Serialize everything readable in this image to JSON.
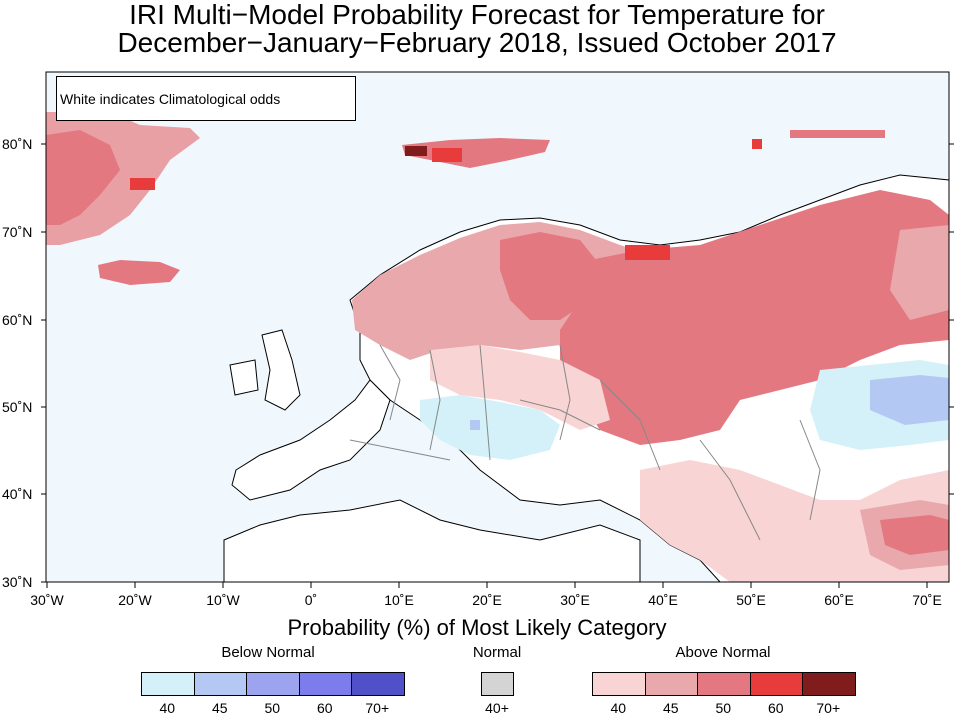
{
  "title_line1": "IRI Multi−Model Probability Forecast for Temperature for",
  "title_line2": "December−January−February 2018, Issued October 2017",
  "note": "White indicates Climatological odds",
  "lat_labels": [
    "80˚N",
    "70˚N",
    "60˚N",
    "50˚N",
    "40˚N",
    "30˚N"
  ],
  "lon_labels": [
    "30˚W",
    "20˚W",
    "10˚W",
    "0˚",
    "10˚E",
    "20˚E",
    "30˚E",
    "40˚E",
    "50˚E",
    "60˚E",
    "70˚E"
  ],
  "legend": {
    "title": "Probability (%) of Most Likely Category",
    "below": {
      "label": "Below Normal",
      "colors": [
        "#d4f0f8",
        "#b4c8f4",
        "#9ca4f0",
        "#7c7cec",
        "#5050c8"
      ],
      "ticks": [
        "40",
        "45",
        "50",
        "60",
        "70+"
      ]
    },
    "normal": {
      "label": "Normal",
      "colors": [
        "#d4d4d4"
      ],
      "ticks": [
        "40+"
      ]
    },
    "above": {
      "label": "Above Normal",
      "colors": [
        "#f8d4d4",
        "#e8a8ac",
        "#e47880",
        "#e83c3c",
        "#801c1c"
      ],
      "ticks": [
        "40",
        "45",
        "50",
        "60",
        "70+"
      ]
    }
  },
  "map_regions": [
    {
      "name": "greenland",
      "category": "above",
      "level": "45-60"
    },
    {
      "name": "iceland",
      "category": "above",
      "level": "50"
    },
    {
      "name": "svalbard",
      "category": "above",
      "level": "50-70+"
    },
    {
      "name": "franz-josef-land",
      "category": "above",
      "level": "45"
    },
    {
      "name": "scandinavia",
      "category": "above",
      "level": "40-50"
    },
    {
      "name": "western-russia",
      "category": "above",
      "level": "50"
    },
    {
      "name": "northern-russia-coast",
      "category": "above",
      "level": "50-60"
    },
    {
      "name": "central-europe",
      "category": "below",
      "level": "40"
    },
    {
      "name": "kazakhstan",
      "category": "below",
      "level": "40-50"
    },
    {
      "name": "iran",
      "category": "above",
      "level": "40-50"
    },
    {
      "name": "ocean",
      "category": "below",
      "level": "climatology-tint"
    }
  ]
}
